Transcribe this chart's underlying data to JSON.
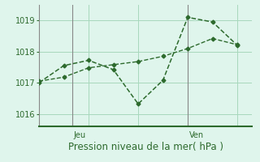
{
  "line1_x": [
    0,
    1,
    2,
    3,
    4,
    5,
    6,
    7,
    8
  ],
  "line1_y": [
    1017.0,
    1017.55,
    1017.72,
    1017.42,
    1016.32,
    1017.08,
    1019.1,
    1018.95,
    1018.2
  ],
  "line2_x": [
    0,
    1,
    2,
    3,
    4,
    5,
    6,
    7,
    8
  ],
  "line2_y": [
    1017.05,
    1017.18,
    1017.48,
    1017.58,
    1017.68,
    1017.85,
    1018.1,
    1018.42,
    1018.22
  ],
  "jeu_x": 1.35,
  "ven_x": 6.0,
  "yticks": [
    1016,
    1017,
    1018,
    1019
  ],
  "ylim": [
    1015.6,
    1019.5
  ],
  "xlim": [
    0.0,
    8.6
  ],
  "line_color": "#2d6a2d",
  "bg_color": "#dff5ec",
  "grid_color": "#a8d8bc",
  "xlabel": "Pression niveau de la mer( hPa )",
  "xlabel_fontsize": 8.5,
  "tick_fontsize": 7
}
